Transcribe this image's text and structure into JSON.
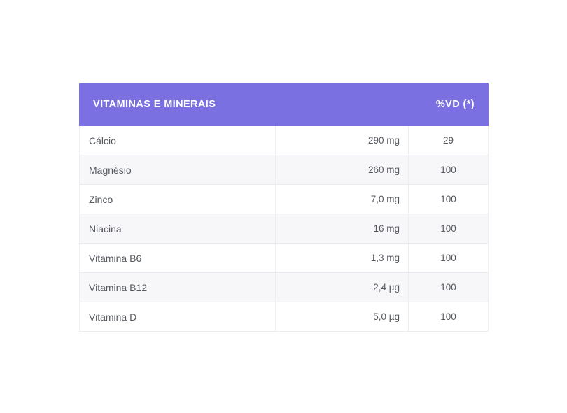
{
  "table": {
    "header": {
      "title": "VITAMINAS E MINERAIS",
      "vd_label": "%VD (*)"
    },
    "rows": [
      {
        "name": "Cálcio",
        "amount": "290 mg",
        "vd": "29"
      },
      {
        "name": "Magnésio",
        "amount": "260 mg",
        "vd": "100"
      },
      {
        "name": "Zinco",
        "amount": "7,0 mg",
        "vd": "100"
      },
      {
        "name": "Niacina",
        "amount": "16 mg",
        "vd": "100"
      },
      {
        "name": "Vitamina B6",
        "amount": "1,3 mg",
        "vd": "100"
      },
      {
        "name": "Vitamina B12",
        "amount": "2,4 µg",
        "vd": "100"
      },
      {
        "name": "Vitamina D",
        "amount": "5,0 µg",
        "vd": "100"
      }
    ]
  },
  "colors": {
    "header_bg": "#7a70e2",
    "header_text": "#ffffff",
    "row_text": "#55585f",
    "row_alt_bg": "#f7f7f9",
    "border": "#eaeaef",
    "divider": "#ededf2",
    "page_bg": "#ffffff"
  }
}
